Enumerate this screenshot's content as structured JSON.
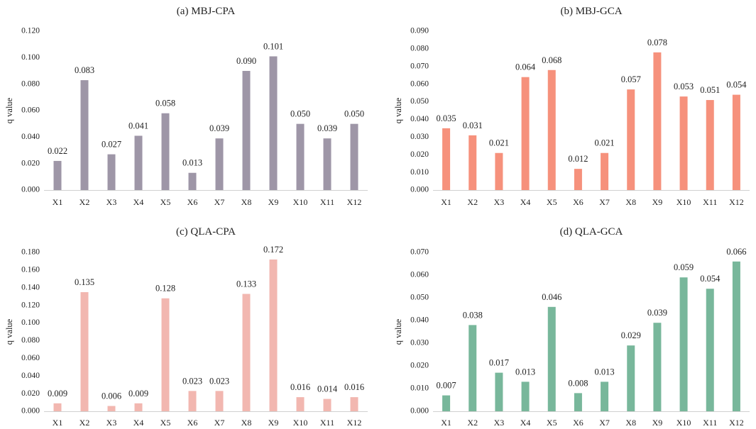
{
  "chart_data": [
    {
      "type": "bar",
      "title": "(a) MBJ-CPA",
      "xlabel": "",
      "ylabel": "q value",
      "categories": [
        "X1",
        "X2",
        "X3",
        "X4",
        "X5",
        "X6",
        "X7",
        "X8",
        "X9",
        "X10",
        "X11",
        "X12"
      ],
      "values": [
        0.022,
        0.083,
        0.027,
        0.041,
        0.058,
        0.013,
        0.039,
        0.09,
        0.101,
        0.05,
        0.039,
        0.05
      ],
      "value_labels": [
        "0.022",
        "0.083",
        "0.027",
        "0.041",
        "0.058",
        "0.013",
        "0.039",
        "0.090",
        "0.101",
        "0.050",
        "0.039",
        "0.050"
      ],
      "ylim": [
        0,
        0.12
      ],
      "yticks": [
        "0.000",
        "0.020",
        "0.040",
        "0.060",
        "0.080",
        "0.100",
        "0.120"
      ],
      "color": "#9e96a7"
    },
    {
      "type": "bar",
      "title": "(b) MBJ-GCA",
      "xlabel": "",
      "ylabel": "q value",
      "categories": [
        "X1",
        "X2",
        "X3",
        "X4",
        "X5",
        "X6",
        "X7",
        "X8",
        "X9",
        "X10",
        "X11",
        "X12"
      ],
      "values": [
        0.035,
        0.031,
        0.021,
        0.064,
        0.068,
        0.012,
        0.021,
        0.057,
        0.078,
        0.053,
        0.051,
        0.054
      ],
      "value_labels": [
        "0.035",
        "0.031",
        "0.021",
        "0.064",
        "0.068",
        "0.012",
        "0.021",
        "0.057",
        "0.078",
        "0.053",
        "0.051",
        "0.054"
      ],
      "ylim": [
        0,
        0.09
      ],
      "yticks": [
        "0.000",
        "0.010",
        "0.020",
        "0.030",
        "0.040",
        "0.050",
        "0.060",
        "0.070",
        "0.080",
        "0.090"
      ],
      "color": "#f6917c"
    },
    {
      "type": "bar",
      "title": "(c) QLA-CPA",
      "xlabel": "",
      "ylabel": "q value",
      "categories": [
        "X1",
        "X2",
        "X3",
        "X4",
        "X5",
        "X6",
        "X7",
        "X8",
        "X9",
        "X10",
        "X11",
        "X12"
      ],
      "values": [
        0.009,
        0.135,
        0.006,
        0.009,
        0.128,
        0.023,
        0.023,
        0.133,
        0.172,
        0.016,
        0.014,
        0.016
      ],
      "value_labels": [
        "0.009",
        "0.135",
        "0.006",
        "0.009",
        "0.128",
        "0.023",
        "0.023",
        "0.133",
        "0.172",
        "0.016",
        "0.014",
        "0.016"
      ],
      "ylim": [
        0,
        0.18
      ],
      "yticks": [
        "0.000",
        "0.020",
        "0.040",
        "0.060",
        "0.080",
        "0.100",
        "0.120",
        "0.140",
        "0.160",
        "0.180"
      ],
      "color": "#f2b7b0"
    },
    {
      "type": "bar",
      "title": "(d) QLA-GCA",
      "xlabel": "",
      "ylabel": "q value",
      "categories": [
        "X1",
        "X2",
        "X3",
        "X4",
        "X5",
        "X6",
        "X7",
        "X8",
        "X9",
        "X10",
        "X11",
        "X12"
      ],
      "values": [
        0.007,
        0.038,
        0.017,
        0.013,
        0.046,
        0.008,
        0.013,
        0.029,
        0.039,
        0.059,
        0.054,
        0.066
      ],
      "value_labels": [
        "0.007",
        "0.038",
        "0.017",
        "0.013",
        "0.046",
        "0.008",
        "0.013",
        "0.029",
        "0.039",
        "0.059",
        "0.054",
        "0.066"
      ],
      "ylim": [
        0,
        0.07
      ],
      "yticks": [
        "0.000",
        "0.010",
        "0.020",
        "0.030",
        "0.040",
        "0.050",
        "0.060",
        "0.070"
      ],
      "color": "#78b79b"
    }
  ]
}
